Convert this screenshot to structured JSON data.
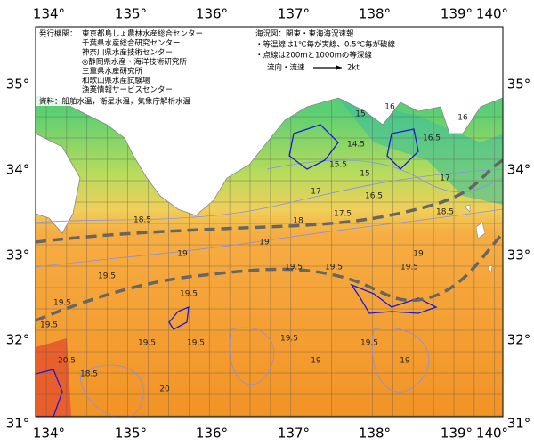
{
  "axes": {
    "lon_labels": [
      "134°",
      "135°",
      "136°",
      "137°",
      "138°",
      "139°",
      "140°"
    ],
    "lat_labels": [
      "35°",
      "34°",
      "33°",
      "32°",
      "31°"
    ]
  },
  "issuers": {
    "heading": "発行機関：",
    "names": [
      "東京都島しょ農林水産総合センター",
      "千葉県水産総合研究センター",
      "神奈川県水産技術センター",
      "◎静岡県水産・海洋技術研究所",
      "三重県水産研究所",
      "和歌山県水産試験場",
      "漁業情報サービスセンター"
    ],
    "source": "資料：船舶水温，衛星水温，気象庁解析水温"
  },
  "legend": {
    "title": "海況図：関東・東海海況速報",
    "notes": [
      "・等温線は1℃毎が実線、0.5℃毎が破線",
      "・点線は200mと1000mの等深線"
    ],
    "current_label": "流向・流速",
    "speed_label": "2kt"
  },
  "contour_labels": [
    "15",
    "14.5",
    "15.5",
    "15",
    "16",
    "16",
    "16.5",
    "17",
    "17.5",
    "18",
    "18.5",
    "18.5",
    "19",
    "19",
    "19",
    "19.5",
    "19.5",
    "19.5",
    "19.5",
    "19.5",
    "19.5",
    "19.5",
    "19.5",
    "19.5",
    "19.5",
    "19.5",
    "19",
    "19",
    "20",
    "20.5",
    "18.5",
    "17",
    "16.5"
  ]
}
